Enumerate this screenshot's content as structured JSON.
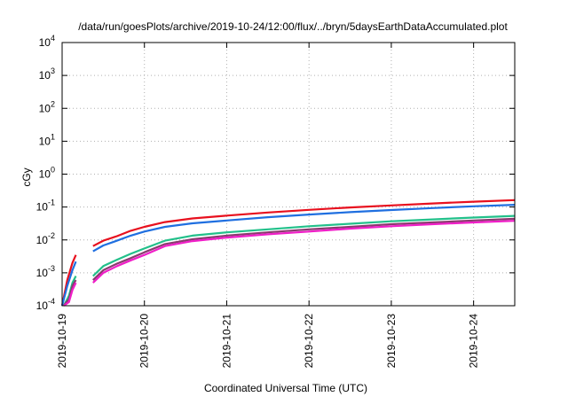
{
  "chart_data": {
    "type": "line",
    "title": "/data/run/goesPlots/archive/2019-10-24/12:00/flux/../bryn/5daysEarthDataAccumulated.plot",
    "xlabel": "Coordinated Universal Time (UTC)",
    "ylabel": "cGy",
    "x_ticks": [
      "2019-10-19",
      "2019-10-20",
      "2019-10-21",
      "2019-10-22",
      "2019-10-23",
      "2019-10-24"
    ],
    "x_range": [
      "2019-10-19",
      "2019-10-24T12:00"
    ],
    "y_scale": "log",
    "y_range": [
      0.0001,
      10000
    ],
    "y_ticks": [
      {
        "base": "10",
        "exp": "-4",
        "value": 0.0001
      },
      {
        "base": "10",
        "exp": "-3",
        "value": 0.001
      },
      {
        "base": "10",
        "exp": "-2",
        "value": 0.01
      },
      {
        "base": "10",
        "exp": "-1",
        "value": 0.1
      },
      {
        "base": "10",
        "exp": "0",
        "value": 1
      },
      {
        "base": "10",
        "exp": "1",
        "value": 10
      },
      {
        "base": "10",
        "exp": "2",
        "value": 100
      },
      {
        "base": "10",
        "exp": "3",
        "value": 1000
      },
      {
        "base": "10",
        "exp": "4",
        "value": 10000
      }
    ],
    "grid": true,
    "series": [
      {
        "color": "#e8101e",
        "segments": [
          [
            [
              "2019-10-19T00:00",
              0.0001
            ],
            [
              "2019-10-19T01:30",
              0.0006
            ],
            [
              "2019-10-19T03:00",
              0.002
            ],
            [
              "2019-10-19T04:00",
              0.0035
            ]
          ],
          [
            [
              "2019-10-19T09:00",
              0.0065
            ],
            [
              "2019-10-19T12:00",
              0.0095
            ],
            [
              "2019-10-19T16:00",
              0.013
            ],
            [
              "2019-10-19T20:00",
              0.019
            ],
            [
              "2019-10-20T00:00",
              0.025
            ],
            [
              "2019-10-20T06:00",
              0.035
            ],
            [
              "2019-10-20T14:00",
              0.045
            ],
            [
              "2019-10-21T00:00",
              0.055
            ],
            [
              "2019-10-21T12:00",
              0.068
            ],
            [
              "2019-10-22T00:00",
              0.082
            ],
            [
              "2019-10-22T12:00",
              0.097
            ],
            [
              "2019-10-23T00:00",
              0.112
            ],
            [
              "2019-10-23T12:00",
              0.128
            ],
            [
              "2019-10-24T00:00",
              0.145
            ],
            [
              "2019-10-24T12:00",
              0.162
            ]
          ]
        ]
      },
      {
        "color": "#1f6fe0",
        "segments": [
          [
            [
              "2019-10-19T00:00",
              0.0001
            ],
            [
              "2019-10-19T01:30",
              0.0004
            ],
            [
              "2019-10-19T03:00",
              0.0012
            ],
            [
              "2019-10-19T04:00",
              0.0022
            ]
          ],
          [
            [
              "2019-10-19T09:00",
              0.0045
            ],
            [
              "2019-10-19T12:00",
              0.0068
            ],
            [
              "2019-10-19T16:00",
              0.0095
            ],
            [
              "2019-10-19T20:00",
              0.0135
            ],
            [
              "2019-10-20T00:00",
              0.018
            ],
            [
              "2019-10-20T06:00",
              0.025
            ],
            [
              "2019-10-20T14:00",
              0.032
            ],
            [
              "2019-10-21T00:00",
              0.039
            ],
            [
              "2019-10-21T12:00",
              0.049
            ],
            [
              "2019-10-22T00:00",
              0.059
            ],
            [
              "2019-10-22T12:00",
              0.07
            ],
            [
              "2019-10-23T00:00",
              0.081
            ],
            [
              "2019-10-23T12:00",
              0.093
            ],
            [
              "2019-10-24T00:00",
              0.105
            ],
            [
              "2019-10-24T12:00",
              0.117
            ]
          ]
        ]
      },
      {
        "color": "#22c08a",
        "segments": [
          [
            [
              "2019-10-19T00:30",
              0.0001
            ],
            [
              "2019-10-19T02:00",
              0.0002
            ],
            [
              "2019-10-19T03:00",
              0.0005
            ],
            [
              "2019-10-19T04:00",
              0.0008
            ]
          ],
          [
            [
              "2019-10-19T09:00",
              0.0008
            ],
            [
              "2019-10-19T12:00",
              0.0016
            ],
            [
              "2019-10-19T16:00",
              0.0025
            ],
            [
              "2019-10-19T20:00",
              0.0038
            ],
            [
              "2019-10-20T00:00",
              0.0055
            ],
            [
              "2019-10-20T06:00",
              0.0095
            ],
            [
              "2019-10-20T14:00",
              0.0135
            ],
            [
              "2019-10-21T00:00",
              0.017
            ],
            [
              "2019-10-21T12:00",
              0.021
            ],
            [
              "2019-10-22T00:00",
              0.026
            ],
            [
              "2019-10-22T12:00",
              0.031
            ],
            [
              "2019-10-23T00:00",
              0.037
            ],
            [
              "2019-10-23T12:00",
              0.042
            ],
            [
              "2019-10-24T00:00",
              0.048
            ],
            [
              "2019-10-24T12:00",
              0.054
            ]
          ]
        ]
      },
      {
        "color": "#8a3a6e",
        "segments": [
          [
            [
              "2019-10-19T00:30",
              0.0001
            ],
            [
              "2019-10-19T02:00",
              0.00016
            ],
            [
              "2019-10-19T03:00",
              0.0004
            ],
            [
              "2019-10-19T04:00",
              0.0006
            ]
          ],
          [
            [
              "2019-10-19T09:00",
              0.0006
            ],
            [
              "2019-10-19T12:00",
              0.0012
            ],
            [
              "2019-10-19T16:00",
              0.0019
            ],
            [
              "2019-10-19T20:00",
              0.0028
            ],
            [
              "2019-10-20T00:00",
              0.0042
            ],
            [
              "2019-10-20T06:00",
              0.0075
            ],
            [
              "2019-10-20T14:00",
              0.0105
            ],
            [
              "2019-10-21T00:00",
              0.0135
            ],
            [
              "2019-10-21T12:00",
              0.017
            ],
            [
              "2019-10-22T00:00",
              0.021
            ],
            [
              "2019-10-22T12:00",
              0.025
            ],
            [
              "2019-10-23T00:00",
              0.03
            ],
            [
              "2019-10-23T12:00",
              0.034
            ],
            [
              "2019-10-24T00:00",
              0.039
            ],
            [
              "2019-10-24T12:00",
              0.044
            ]
          ]
        ]
      },
      {
        "color": "#f01ec8",
        "segments": [
          [
            [
              "2019-10-19T00:30",
              0.0001
            ],
            [
              "2019-10-19T02:00",
              0.00013
            ],
            [
              "2019-10-19T03:00",
              0.0003
            ],
            [
              "2019-10-19T04:00",
              0.0005
            ]
          ],
          [
            [
              "2019-10-19T09:00",
              0.0005
            ],
            [
              "2019-10-19T12:00",
              0.001
            ],
            [
              "2019-10-19T16:00",
              0.0016
            ],
            [
              "2019-10-19T20:00",
              0.0024
            ],
            [
              "2019-10-20T00:00",
              0.0035
            ],
            [
              "2019-10-20T06:00",
              0.0065
            ],
            [
              "2019-10-20T14:00",
              0.0092
            ],
            [
              "2019-10-21T00:00",
              0.0118
            ],
            [
              "2019-10-21T12:00",
              0.0148
            ],
            [
              "2019-10-22T00:00",
              0.018
            ],
            [
              "2019-10-22T12:00",
              0.022
            ],
            [
              "2019-10-23T00:00",
              0.026
            ],
            [
              "2019-10-23T12:00",
              0.03
            ],
            [
              "2019-10-24T00:00",
              0.034
            ],
            [
              "2019-10-24T12:00",
              0.038
            ]
          ]
        ]
      }
    ]
  }
}
